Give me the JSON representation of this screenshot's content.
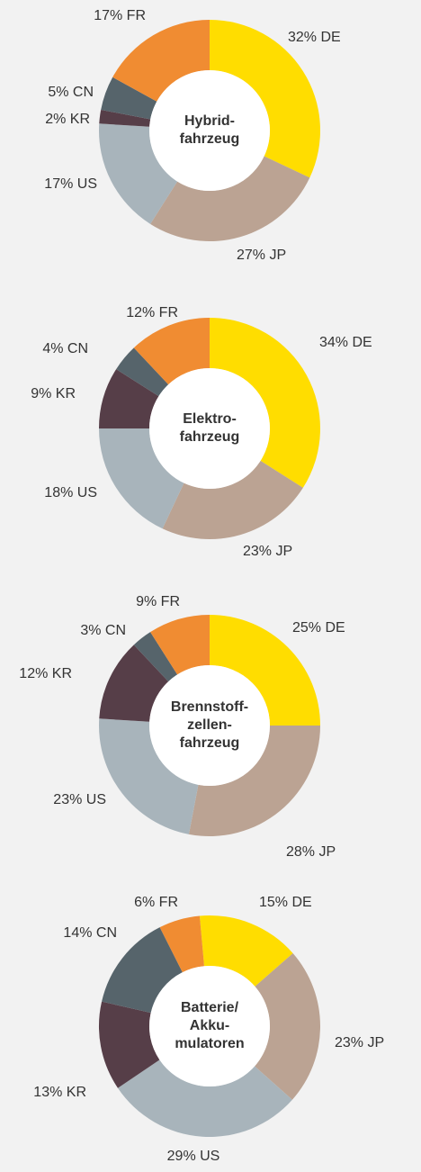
{
  "chart_data": [
    {
      "type": "pie",
      "title": [
        "Hybrid-",
        "fahrzeug"
      ],
      "values": [
        32,
        27,
        17,
        2,
        5,
        17
      ],
      "value_labels": [
        "32% DE",
        "27% JP",
        "17% US",
        "2% KR",
        "5% CN",
        "17% FR"
      ],
      "colors": [
        "#ffdd00",
        "#bba393",
        "#a8b4bb",
        "#563e48",
        "#56646b",
        "#f08c32"
      ]
    },
    {
      "type": "pie",
      "title": [
        "Elektro-",
        "fahrzeug"
      ],
      "values": [
        34,
        23,
        18,
        9,
        4,
        12
      ],
      "value_labels": [
        "34% DE",
        "23% JP",
        "18% US",
        "9% KR",
        "4% CN",
        "12% FR"
      ],
      "colors": [
        "#ffdd00",
        "#bba393",
        "#a8b4bb",
        "#563e48",
        "#56646b",
        "#f08c32"
      ]
    },
    {
      "type": "pie",
      "title": [
        "Brennstoff-",
        "zellen-",
        "fahrzeug"
      ],
      "values": [
        25,
        28,
        23,
        12,
        3,
        9
      ],
      "value_labels": [
        "25% DE",
        "28% JP",
        "23% US",
        "12% KR",
        "3% CN",
        "9% FR"
      ],
      "colors": [
        "#ffdd00",
        "#bba393",
        "#a8b4bb",
        "#563e48",
        "#56646b",
        "#f08c32"
      ]
    },
    {
      "type": "pie",
      "title": [
        "Batterie/",
        "Akku-",
        "mulatoren"
      ],
      "values": [
        15,
        23,
        29,
        13,
        14,
        6
      ],
      "value_labels": [
        "15% DE",
        "23% JP",
        "29% US",
        "13% KR",
        "14% CN",
        "6% FR"
      ],
      "colors": [
        "#ffdd00",
        "#bba393",
        "#a8b4bb",
        "#563e48",
        "#56646b",
        "#f08c32"
      ]
    }
  ]
}
